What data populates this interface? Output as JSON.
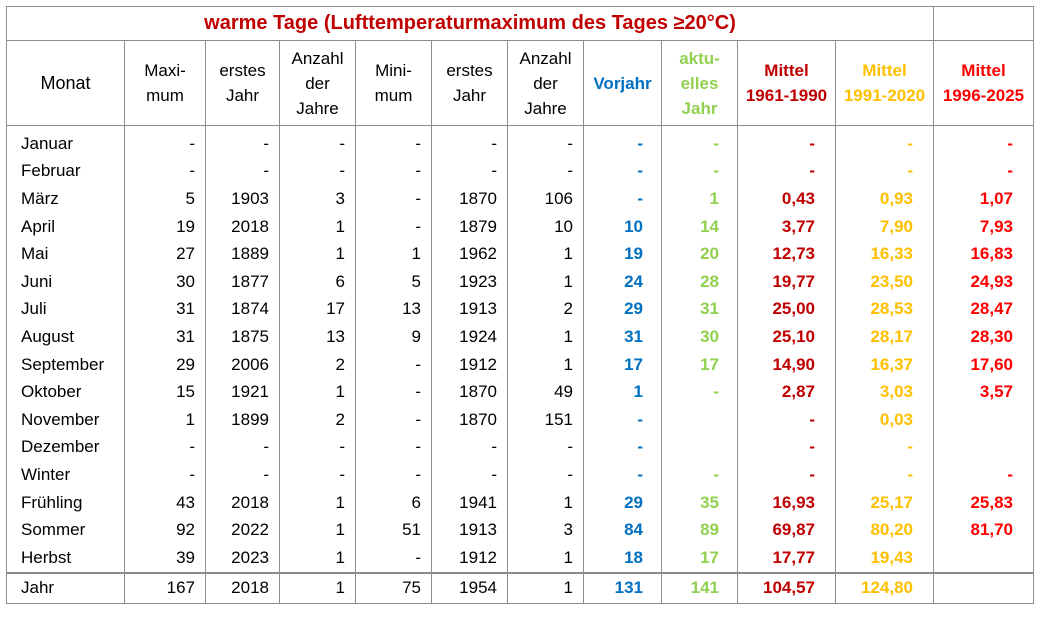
{
  "title": "warme Tage (Lufttemperaturmaximum des Tages ≥20°C)",
  "headers": [
    [
      "Monat"
    ],
    [
      "Maxi-",
      "mum"
    ],
    [
      "erstes",
      "Jahr"
    ],
    [
      "Anzahl",
      "der",
      "Jahre"
    ],
    [
      "Mini-",
      "mum"
    ],
    [
      "erstes",
      "Jahr"
    ],
    [
      "Anzahl",
      "der",
      "Jahre"
    ],
    [
      "Vorjahr"
    ],
    [
      "aktu-",
      "elles",
      "Jahr"
    ],
    [
      "Mittel",
      "1961-1990"
    ],
    [
      "Mittel",
      "1991-2020"
    ],
    [
      "Mittel",
      "1996-2025"
    ]
  ],
  "rows": [
    [
      "Januar",
      "-",
      "-",
      "-",
      "-",
      "-",
      "-",
      "-",
      "-",
      "-",
      "-",
      "-"
    ],
    [
      "Februar",
      "-",
      "-",
      "-",
      "-",
      "-",
      "-",
      "-",
      "-",
      "-",
      "-",
      "-"
    ],
    [
      "März",
      "5",
      "1903",
      "3",
      "-",
      "1870",
      "106",
      "-",
      "1",
      "0,43",
      "0,93",
      "1,07"
    ],
    [
      "April",
      "19",
      "2018",
      "1",
      "-",
      "1879",
      "10",
      "10",
      "14",
      "3,77",
      "7,90",
      "7,93"
    ],
    [
      "Mai",
      "27",
      "1889",
      "1",
      "1",
      "1962",
      "1",
      "19",
      "20",
      "12,73",
      "16,33",
      "16,83"
    ],
    [
      "Juni",
      "30",
      "1877",
      "6",
      "5",
      "1923",
      "1",
      "24",
      "28",
      "19,77",
      "23,50",
      "24,93"
    ],
    [
      "Juli",
      "31",
      "1874",
      "17",
      "13",
      "1913",
      "2",
      "29",
      "31",
      "25,00",
      "28,53",
      "28,47"
    ],
    [
      "August",
      "31",
      "1875",
      "13",
      "9",
      "1924",
      "1",
      "31",
      "30",
      "25,10",
      "28,17",
      "28,30"
    ],
    [
      "September",
      "29",
      "2006",
      "2",
      "-",
      "1912",
      "1",
      "17",
      "17",
      "14,90",
      "16,37",
      "17,60"
    ],
    [
      "Oktober",
      "15",
      "1921",
      "1",
      "-",
      "1870",
      "49",
      "1",
      "-",
      "2,87",
      "3,03",
      "3,57"
    ],
    [
      "November",
      "1",
      "1899",
      "2",
      "-",
      "1870",
      "151",
      "-",
      "",
      "-",
      "0,03",
      ""
    ],
    [
      "Dezember",
      "-",
      "-",
      "-",
      "-",
      "-",
      "-",
      "-",
      "",
      "-",
      "-",
      ""
    ],
    [
      "Winter",
      "-",
      "-",
      "-",
      "-",
      "-",
      "-",
      "-",
      "-",
      "-",
      "-",
      "-"
    ],
    [
      "Frühling",
      "43",
      "2018",
      "1",
      "6",
      "1941",
      "1",
      "29",
      "35",
      "16,93",
      "25,17",
      "25,83"
    ],
    [
      "Sommer",
      "92",
      "2022",
      "1",
      "51",
      "1913",
      "3",
      "84",
      "89",
      "69,87",
      "80,20",
      "81,70"
    ],
    [
      "Herbst",
      "39",
      "2023",
      "1",
      "-",
      "1912",
      "1",
      "18",
      "17",
      "17,77",
      "19,43",
      ""
    ]
  ],
  "total": [
    "Jahr",
    "167",
    "2018",
    "1",
    "75",
    "1954",
    "1",
    "131",
    "141",
    "104,57",
    "124,80",
    ""
  ]
}
